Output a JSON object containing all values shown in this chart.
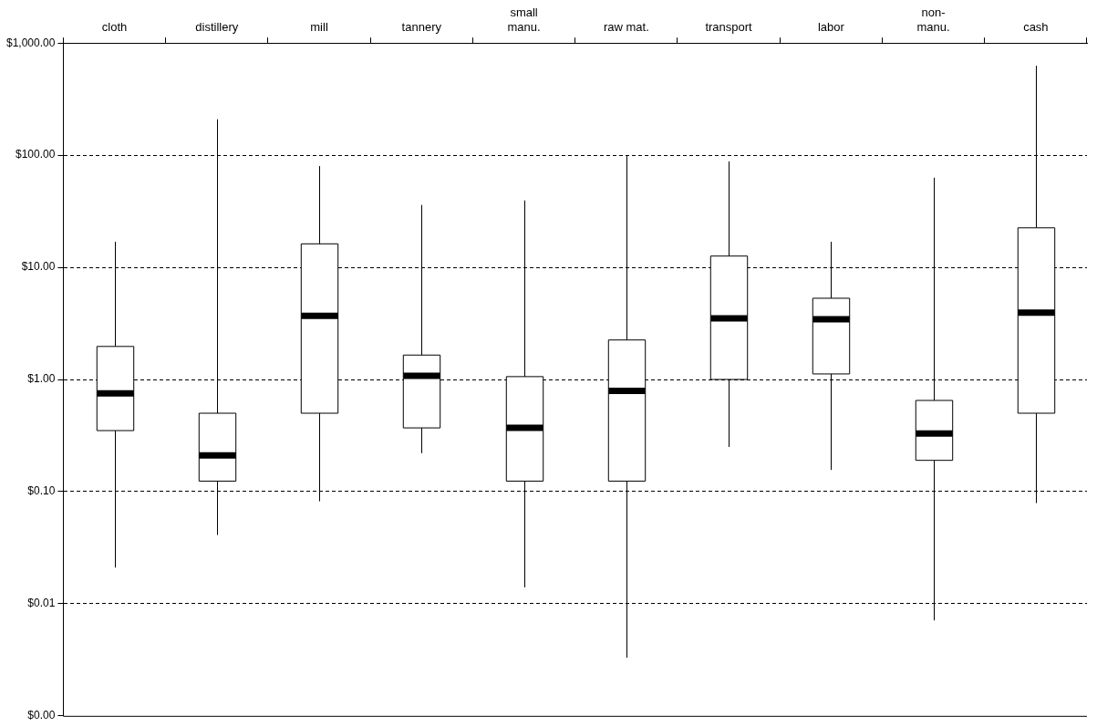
{
  "chart_data": {
    "type": "box",
    "categories": [
      "cloth",
      "distillery",
      "mill",
      "tannery",
      "small manu.",
      "raw mat.",
      "transport",
      "labor",
      "non-manu.",
      "cash"
    ],
    "boxes": [
      {
        "low": 0.021,
        "q1": 0.35,
        "median": 0.75,
        "q3": 1.97,
        "high": 16.9
      },
      {
        "low": 0.041,
        "q1": 0.124,
        "median": 0.21,
        "q3": 0.5,
        "high": 209
      },
      {
        "low": 0.082,
        "q1": 0.5,
        "median": 3.7,
        "q3": 16.2,
        "high": 80
      },
      {
        "low": 0.22,
        "q1": 0.37,
        "median": 1.08,
        "q3": 1.65,
        "high": 36
      },
      {
        "low": 0.014,
        "q1": 0.124,
        "median": 0.37,
        "q3": 1.06,
        "high": 39.5
      },
      {
        "low": 0.0033,
        "q1": 0.124,
        "median": 0.79,
        "q3": 2.25,
        "high": 100
      },
      {
        "low": 0.25,
        "q1": 1.0,
        "median": 3.5,
        "q3": 12.6,
        "high": 88
      },
      {
        "low": 0.156,
        "q1": 1.12,
        "median": 3.45,
        "q3": 5.3,
        "high": 16.9
      },
      {
        "low": 0.0071,
        "q1": 0.19,
        "median": 0.33,
        "q3": 0.65,
        "high": 63
      },
      {
        "low": 0.079,
        "q1": 0.5,
        "median": 3.95,
        "q3": 22.5,
        "high": 628
      }
    ],
    "log": "y",
    "ylim": [
      0.001,
      1000
    ],
    "yticks": [
      {
        "value": 0.001,
        "label": "$0.00"
      },
      {
        "value": 0.01,
        "label": "$0.01"
      },
      {
        "value": 0.1,
        "label": "$0.10"
      },
      {
        "value": 1,
        "label": "$1.00"
      },
      {
        "value": 10,
        "label": "$10.00"
      },
      {
        "value": 100,
        "label": "$100.00"
      },
      {
        "value": 1000,
        "label": "$1,000.00"
      }
    ],
    "grid": "y",
    "line_style": "dashed"
  }
}
